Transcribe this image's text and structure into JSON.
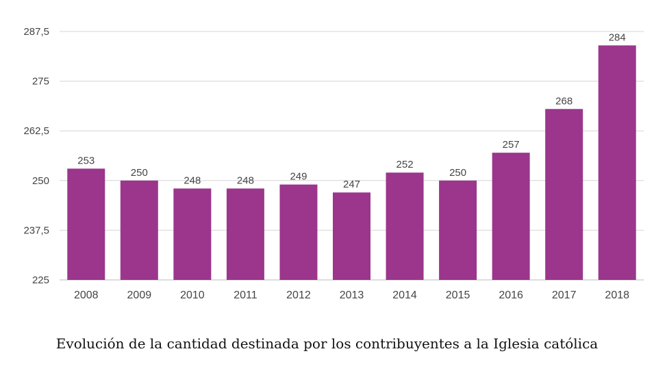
{
  "chart_data": {
    "type": "bar",
    "title": "",
    "caption": "Evolución de la cantidad destinada por los contribuyentes a la Iglesia católica",
    "xlabel": "",
    "ylabel": "",
    "categories": [
      "2008",
      "2009",
      "2010",
      "2011",
      "2012",
      "2013",
      "2014",
      "2015",
      "2016",
      "2017",
      "2018"
    ],
    "values": [
      253,
      250,
      248,
      248,
      249,
      247,
      252,
      250,
      257,
      268,
      284
    ],
    "ylim": [
      225,
      287.5
    ],
    "yticks": [
      225,
      237.5,
      250,
      262.5,
      275,
      287.5
    ],
    "ytick_labels": [
      "225",
      "237,5",
      "250",
      "262,5",
      "275",
      "287,5"
    ],
    "grid": true,
    "data_labels": true,
    "colors": {
      "bar": "#9b368c",
      "grid": "#d4d4d4",
      "text": "#444444"
    }
  }
}
